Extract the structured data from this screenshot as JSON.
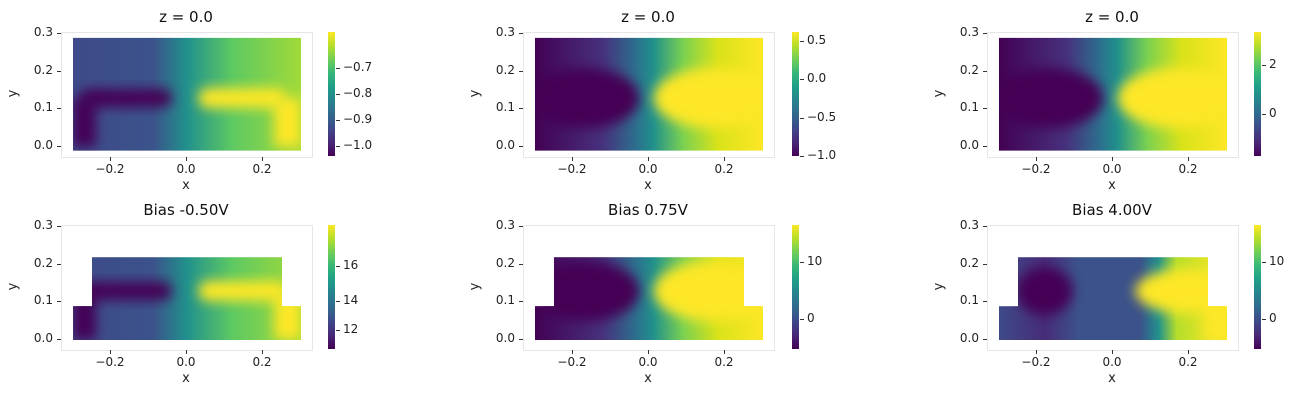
{
  "figure": {
    "panels": [
      {
        "id": "p1",
        "title": "z = 0.0",
        "cbar_ticks": [
          "−0.7",
          "−0.8",
          "−0.9",
          "−1.0"
        ],
        "shape": "rect",
        "style": "flat_tee"
      },
      {
        "id": "p2",
        "title": "z = 0.0",
        "cbar_ticks": [
          "0.5",
          "0.0",
          "−0.5",
          "−1.0"
        ],
        "shape": "rect",
        "style": "smooth"
      },
      {
        "id": "p3",
        "title": "z = 0.0",
        "cbar_ticks": [
          "2",
          "0"
        ],
        "shape": "rect",
        "style": "smooth"
      },
      {
        "id": "p4",
        "title": "Bias -0.50V",
        "cbar_ticks": [
          "16",
          "14",
          "12"
        ],
        "shape": "stepped",
        "style": "flat_tee"
      },
      {
        "id": "p5",
        "title": "Bias 0.75V",
        "cbar_ticks": [
          "10",
          "0"
        ],
        "shape": "stepped",
        "style": "smooth"
      },
      {
        "id": "p6",
        "title": "Bias 4.00V",
        "cbar_ticks": [
          "10",
          "0"
        ],
        "shape": "stepped",
        "style": "split"
      }
    ],
    "xticks": [
      "−0.2",
      "0.0",
      "0.2"
    ],
    "yticks": [
      "0.3",
      "0.2",
      "0.1",
      "0.0"
    ],
    "xlabel": "x",
    "ylabel": "y"
  },
  "chart_data": [
    {
      "type": "heatmap",
      "title": "z = 0.0",
      "xlabel": "x",
      "ylabel": "y",
      "xlim": [
        -0.3,
        0.3
      ],
      "ylim": [
        0.0,
        0.3
      ],
      "colormap": "viridis",
      "colorbar": {
        "range": [
          -1.0,
          -0.63
        ],
        "ticks": [
          -1.0,
          -0.9,
          -0.8,
          -0.7
        ]
      },
      "domain": "rectangle x[-0.3,0.3] y[0,0.29]",
      "description": "Low (-1.0) region on left electrode (x<-0.05, y~0.13), high (-0.63) on right electrode (x>0.03, y~0.14)"
    },
    {
      "type": "heatmap",
      "title": "z = 0.0",
      "xlabel": "x",
      "ylabel": "y",
      "xlim": [
        -0.3,
        0.3
      ],
      "ylim": [
        0.0,
        0.3
      ],
      "colormap": "viridis",
      "colorbar": {
        "range": [
          -1.0,
          0.65
        ],
        "ticks": [
          -1.0,
          -0.5,
          0.0,
          0.5
        ]
      },
      "domain": "rectangle x[-0.3,0.3] y[0,0.29]",
      "description": "Smooth transition from -1.0 left to ~0.65 right"
    },
    {
      "type": "heatmap",
      "title": "z = 0.0",
      "xlabel": "x",
      "ylabel": "y",
      "xlim": [
        -0.3,
        0.3
      ],
      "ylim": [
        0.0,
        0.3
      ],
      "colormap": "viridis",
      "colorbar": {
        "range": [
          -0.9,
          3.8
        ],
        "ticks": [
          0,
          2
        ]
      },
      "domain": "rectangle x[-0.3,0.3] y[0,0.29]",
      "description": "Smooth transition from ~-0.9 left to ~3.8 right"
    },
    {
      "type": "heatmap",
      "title": "Bias -0.50V",
      "xlabel": "x",
      "ylabel": "y",
      "xlim": [
        -0.3,
        0.3
      ],
      "ylim": [
        0.0,
        0.3
      ],
      "colormap": "viridis",
      "colorbar": {
        "range": [
          11.1,
          17.8
        ],
        "ticks": [
          12,
          14,
          16
        ]
      },
      "domain": "stepped: x[-0.3,0.3] y[0,0.09] plus x[-0.25,0.25] y[0.09,0.22]",
      "description": "Low on left electrode, high on right electrode"
    },
    {
      "type": "heatmap",
      "title": "Bias 0.75V",
      "xlabel": "x",
      "ylabel": "y",
      "xlim": [
        -0.3,
        0.3
      ],
      "ylim": [
        0.0,
        0.3
      ],
      "colormap": "viridis",
      "colorbar": {
        "range": [
          -4,
          17.5
        ],
        "ticks": [
          0,
          10
        ]
      },
      "domain": "stepped: x[-0.3,0.3] y[0,0.09] plus x[-0.25,0.25] y[0.09,0.22]",
      "description": "Minimum near (-0.08,0.13), maximum right side"
    },
    {
      "type": "heatmap",
      "title": "Bias 4.00V",
      "xlabel": "x",
      "ylabel": "y",
      "xlim": [
        -0.3,
        0.3
      ],
      "ylim": [
        0.0,
        0.3
      ],
      "colormap": "viridis",
      "colorbar": {
        "range": [
          -4,
          17.5
        ],
        "ticks": [
          0,
          10
        ]
      },
      "domain": "stepped: x[-0.3,0.3] y[0,0.09] plus x[-0.25,0.25] y[0.09,0.22]",
      "description": "Minimum near (-0.13,0.13), flat ~0 middle, maximum right side x>0.1"
    }
  ]
}
